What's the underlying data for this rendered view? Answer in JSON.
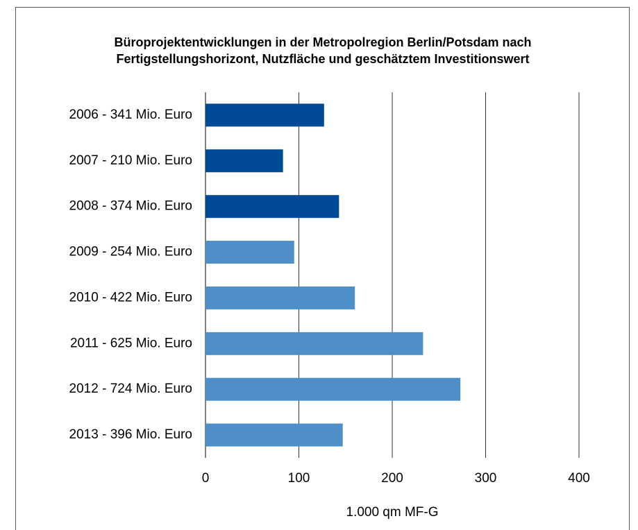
{
  "chart_data": {
    "type": "bar",
    "orientation": "horizontal",
    "title": [
      "Büroprojektentwicklungen in der Metropolregion Berlin/Potsdam nach",
      "Fertigstellungshorizont, Nutzfläche und geschätztem Investitionswert"
    ],
    "categories": [
      "2006 - 341 Mio. Euro",
      "2007 - 210 Mio. Euro",
      "2008 - 374 Mio. Euro",
      "2009 - 254 Mio. Euro",
      "2010 - 422 Mio. Euro",
      "2011 - 625 Mio. Euro",
      "2012 - 724 Mio. Euro",
      "2013 - 396 Mio. Euro"
    ],
    "values": [
      127,
      83,
      143,
      95,
      160,
      233,
      273,
      147
    ],
    "colors": [
      "#004a98",
      "#004a98",
      "#004a98",
      "#4f8fc9",
      "#4f8fc9",
      "#4f8fc9",
      "#4f8fc9",
      "#4f8fc9"
    ],
    "xlim": [
      0,
      400
    ],
    "xticks": [
      0,
      100,
      200,
      300,
      400
    ],
    "grid": true,
    "x_label": "1.000 qm MF-G"
  }
}
